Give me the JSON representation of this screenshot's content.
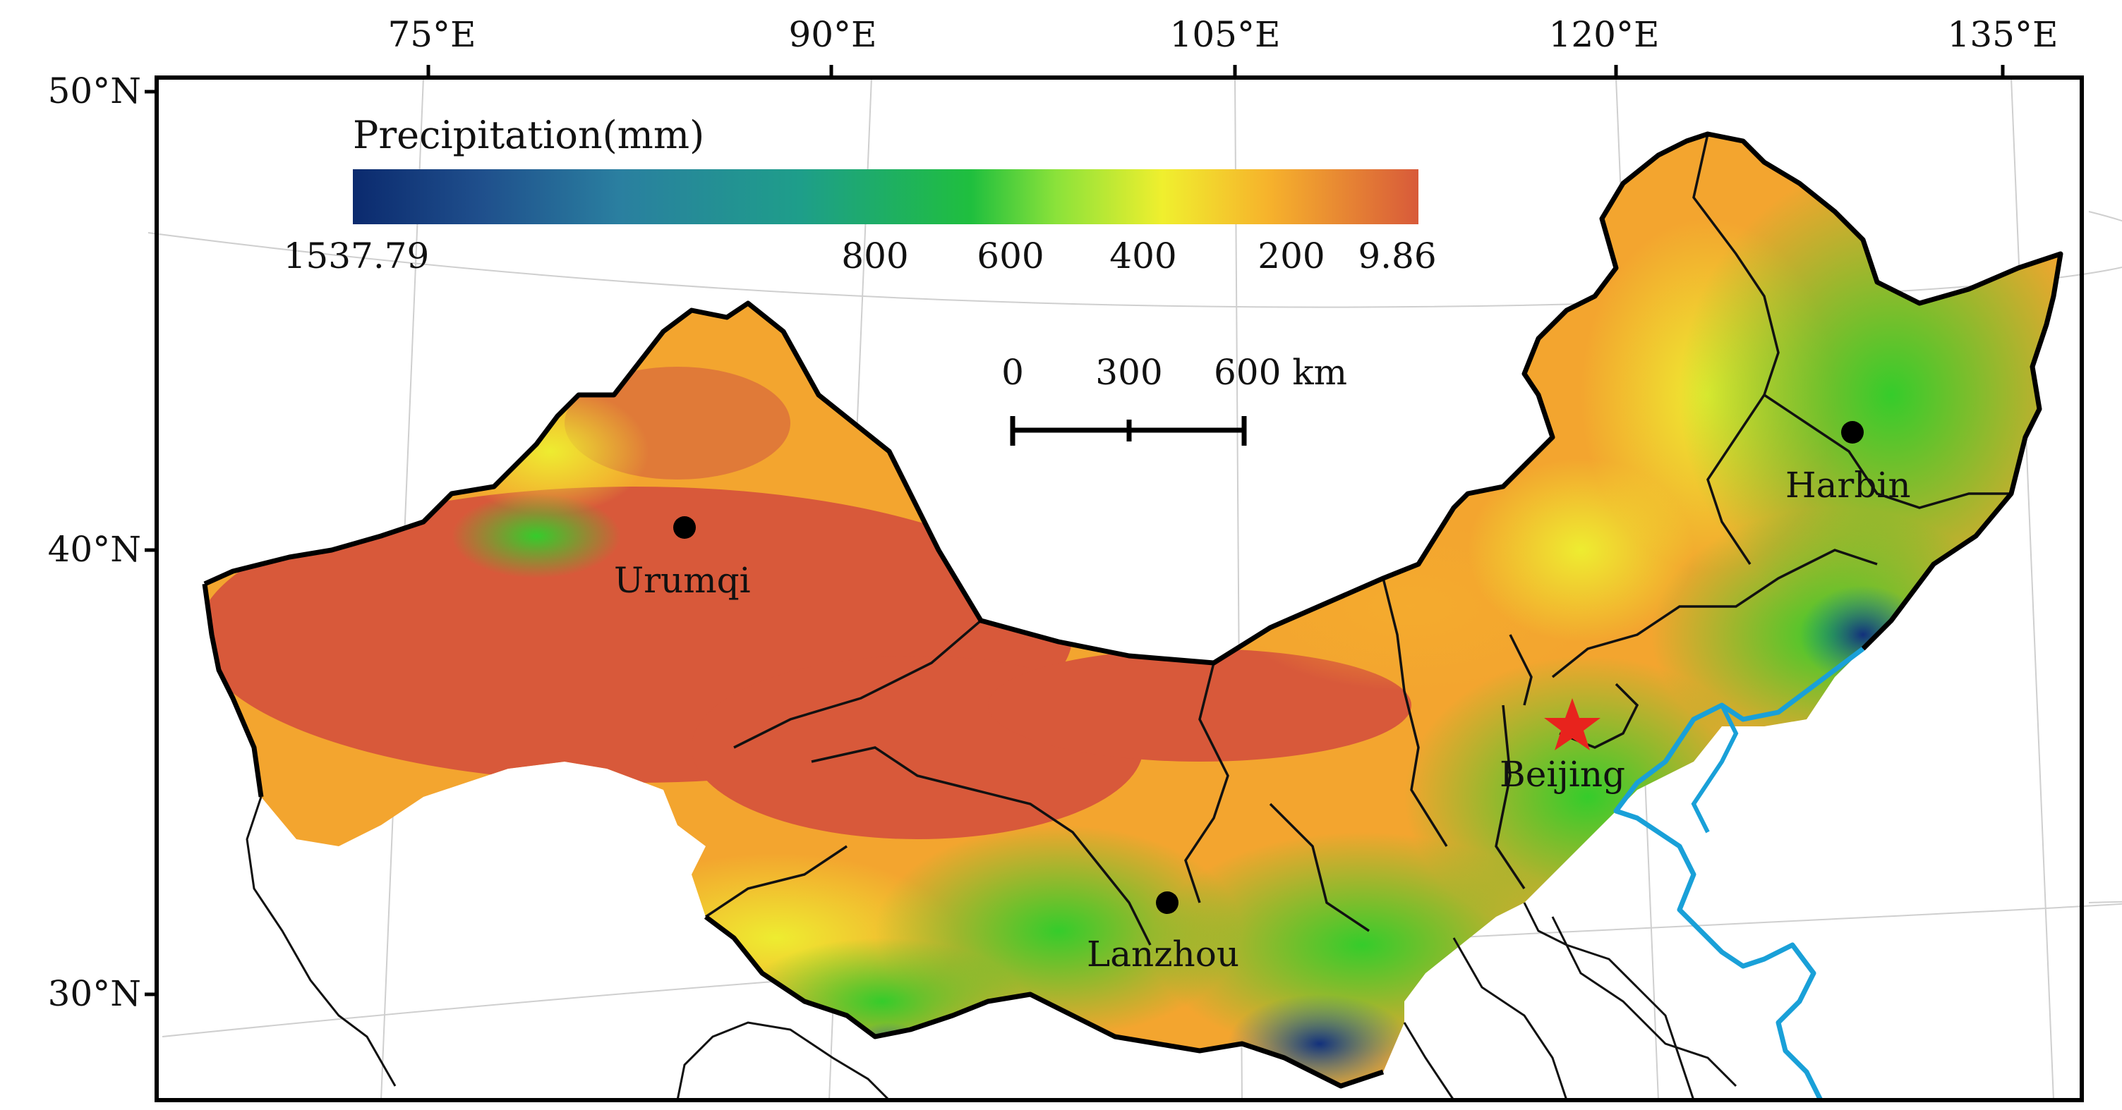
{
  "map": {
    "legend": {
      "title": "Precipitation(mm)",
      "ticks": [
        "1537.79",
        "800",
        "600",
        "400",
        "200",
        "9.86"
      ],
      "colors": [
        "#0b2a6e",
        "#1f5f98",
        "#2a8a9a",
        "#1aa870",
        "#28c23a",
        "#7fe03a",
        "#e8ef2e",
        "#f6b22c",
        "#f08a45",
        "#d85a3a"
      ]
    },
    "scale_bar": {
      "ticks": [
        "0",
        "300",
        "600 km"
      ]
    },
    "lon_labels": [
      "75°E",
      "90°E",
      "105°E",
      "120°E",
      "135°E"
    ],
    "lat_labels": [
      "50°N",
      "40°N",
      "30°N"
    ],
    "cities": [
      {
        "name": "Urumqi",
        "symbol": "dot"
      },
      {
        "name": "Lanzhou",
        "symbol": "dot"
      },
      {
        "name": "Beijing",
        "symbol": "star"
      },
      {
        "name": "Harbin",
        "symbol": "dot"
      }
    ],
    "colors": {
      "dry": "#d8593a",
      "mid": "#f3a52f",
      "semiwet": "#e9ef30",
      "wet": "#3ccf2c",
      "very_wet": "#14307a",
      "coast": "#19a0d8",
      "star": "#e8231d"
    }
  }
}
